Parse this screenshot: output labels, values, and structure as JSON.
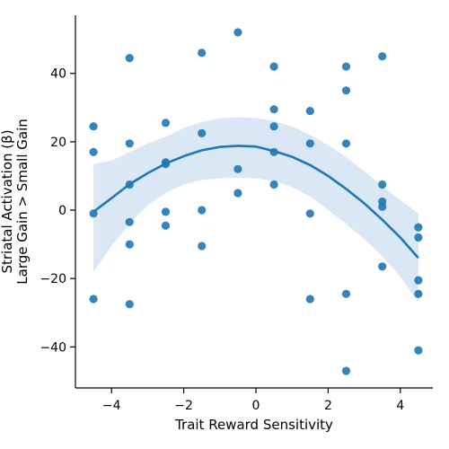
{
  "chart_data": {
    "type": "scatter",
    "title": "",
    "xlabel": "Trait Reward Sensitivity",
    "ylabel_lines": [
      "Striatal Activation (β)",
      "Large Gain > Small Gain"
    ],
    "xlim": [
      -5.0,
      4.9
    ],
    "ylim": [
      -52.0,
      57.0
    ],
    "x_ticks": [
      -4,
      -2,
      0,
      2,
      4
    ],
    "x_tick_labels": [
      "−4",
      "−2",
      "0",
      "2",
      "4"
    ],
    "y_ticks": [
      -40,
      -20,
      0,
      20,
      40
    ],
    "y_tick_labels": [
      "−40",
      "−20",
      "0",
      "20",
      "40"
    ],
    "grid": false,
    "colors": {
      "points": "#1f77b4",
      "fit": "#1f77b4",
      "band": "#c6dbef"
    },
    "series": [
      {
        "points": [
          [
            -4.5,
            24.5
          ],
          [
            -4.5,
            17
          ],
          [
            -4.5,
            -1
          ],
          [
            -4.5,
            -26
          ],
          [
            -3.5,
            44.5
          ],
          [
            -3.5,
            19.5
          ],
          [
            -3.5,
            7.5
          ],
          [
            -3.5,
            -3.5
          ],
          [
            -3.5,
            -10
          ],
          [
            -3.5,
            -27.5
          ],
          [
            -2.5,
            25.5
          ],
          [
            -2.5,
            14
          ],
          [
            -2.5,
            13.5
          ],
          [
            -2.5,
            -0.5
          ],
          [
            -2.5,
            -4.5
          ],
          [
            -1.5,
            46
          ],
          [
            -1.5,
            22.5
          ],
          [
            -1.5,
            0
          ],
          [
            -1.5,
            -10.5
          ],
          [
            -0.5,
            52
          ],
          [
            -0.5,
            12
          ],
          [
            -0.5,
            5
          ],
          [
            0.5,
            42
          ],
          [
            0.5,
            29.5
          ],
          [
            0.5,
            24.5
          ],
          [
            0.5,
            17
          ],
          [
            0.5,
            7.5
          ],
          [
            1.5,
            29
          ],
          [
            1.5,
            19.5
          ],
          [
            1.5,
            -1
          ],
          [
            1.5,
            -26
          ],
          [
            2.5,
            42
          ],
          [
            2.5,
            35
          ],
          [
            2.5,
            19.5
          ],
          [
            2.5,
            -24.5
          ],
          [
            2.5,
            -47
          ],
          [
            3.5,
            45
          ],
          [
            3.5,
            7.5
          ],
          [
            3.5,
            2.5
          ],
          [
            3.5,
            1
          ],
          [
            3.5,
            -16.5
          ],
          [
            4.5,
            -5
          ],
          [
            4.5,
            -8
          ],
          [
            4.5,
            -20.5
          ],
          [
            4.5,
            -24.5
          ],
          [
            4.5,
            -41
          ]
        ]
      }
    ],
    "fit": {
      "x": [
        -4.5,
        -4.0,
        -3.5,
        -3.0,
        -2.5,
        -2.0,
        -1.5,
        -1.0,
        -0.5,
        0.0,
        0.5,
        1.0,
        1.5,
        2.0,
        2.5,
        3.0,
        3.5,
        4.0,
        4.5
      ],
      "y": [
        -0.5,
        3.5,
        7.6,
        10.8,
        13.6,
        15.8,
        17.5,
        18.5,
        18.8,
        18.6,
        17.3,
        15.6,
        13.2,
        10.0,
        6.2,
        2.0,
        -2.8,
        -8.0,
        -14.0
      ],
      "ci_upper": [
        13.5,
        14.5,
        17.0,
        19.5,
        21.5,
        24.0,
        25.8,
        26.8,
        27.2,
        27.0,
        26.0,
        24.5,
        22.0,
        19.0,
        15.5,
        11.5,
        7.0,
        3.0,
        -1.0
      ],
      "ci_lower": [
        -18.0,
        -10.5,
        -4.0,
        1.5,
        5.0,
        7.5,
        8.8,
        9.3,
        9.5,
        9.3,
        8.5,
        6.7,
        4.0,
        0.0,
        -4.0,
        -8.5,
        -13.5,
        -19.5,
        -27.0
      ]
    }
  }
}
